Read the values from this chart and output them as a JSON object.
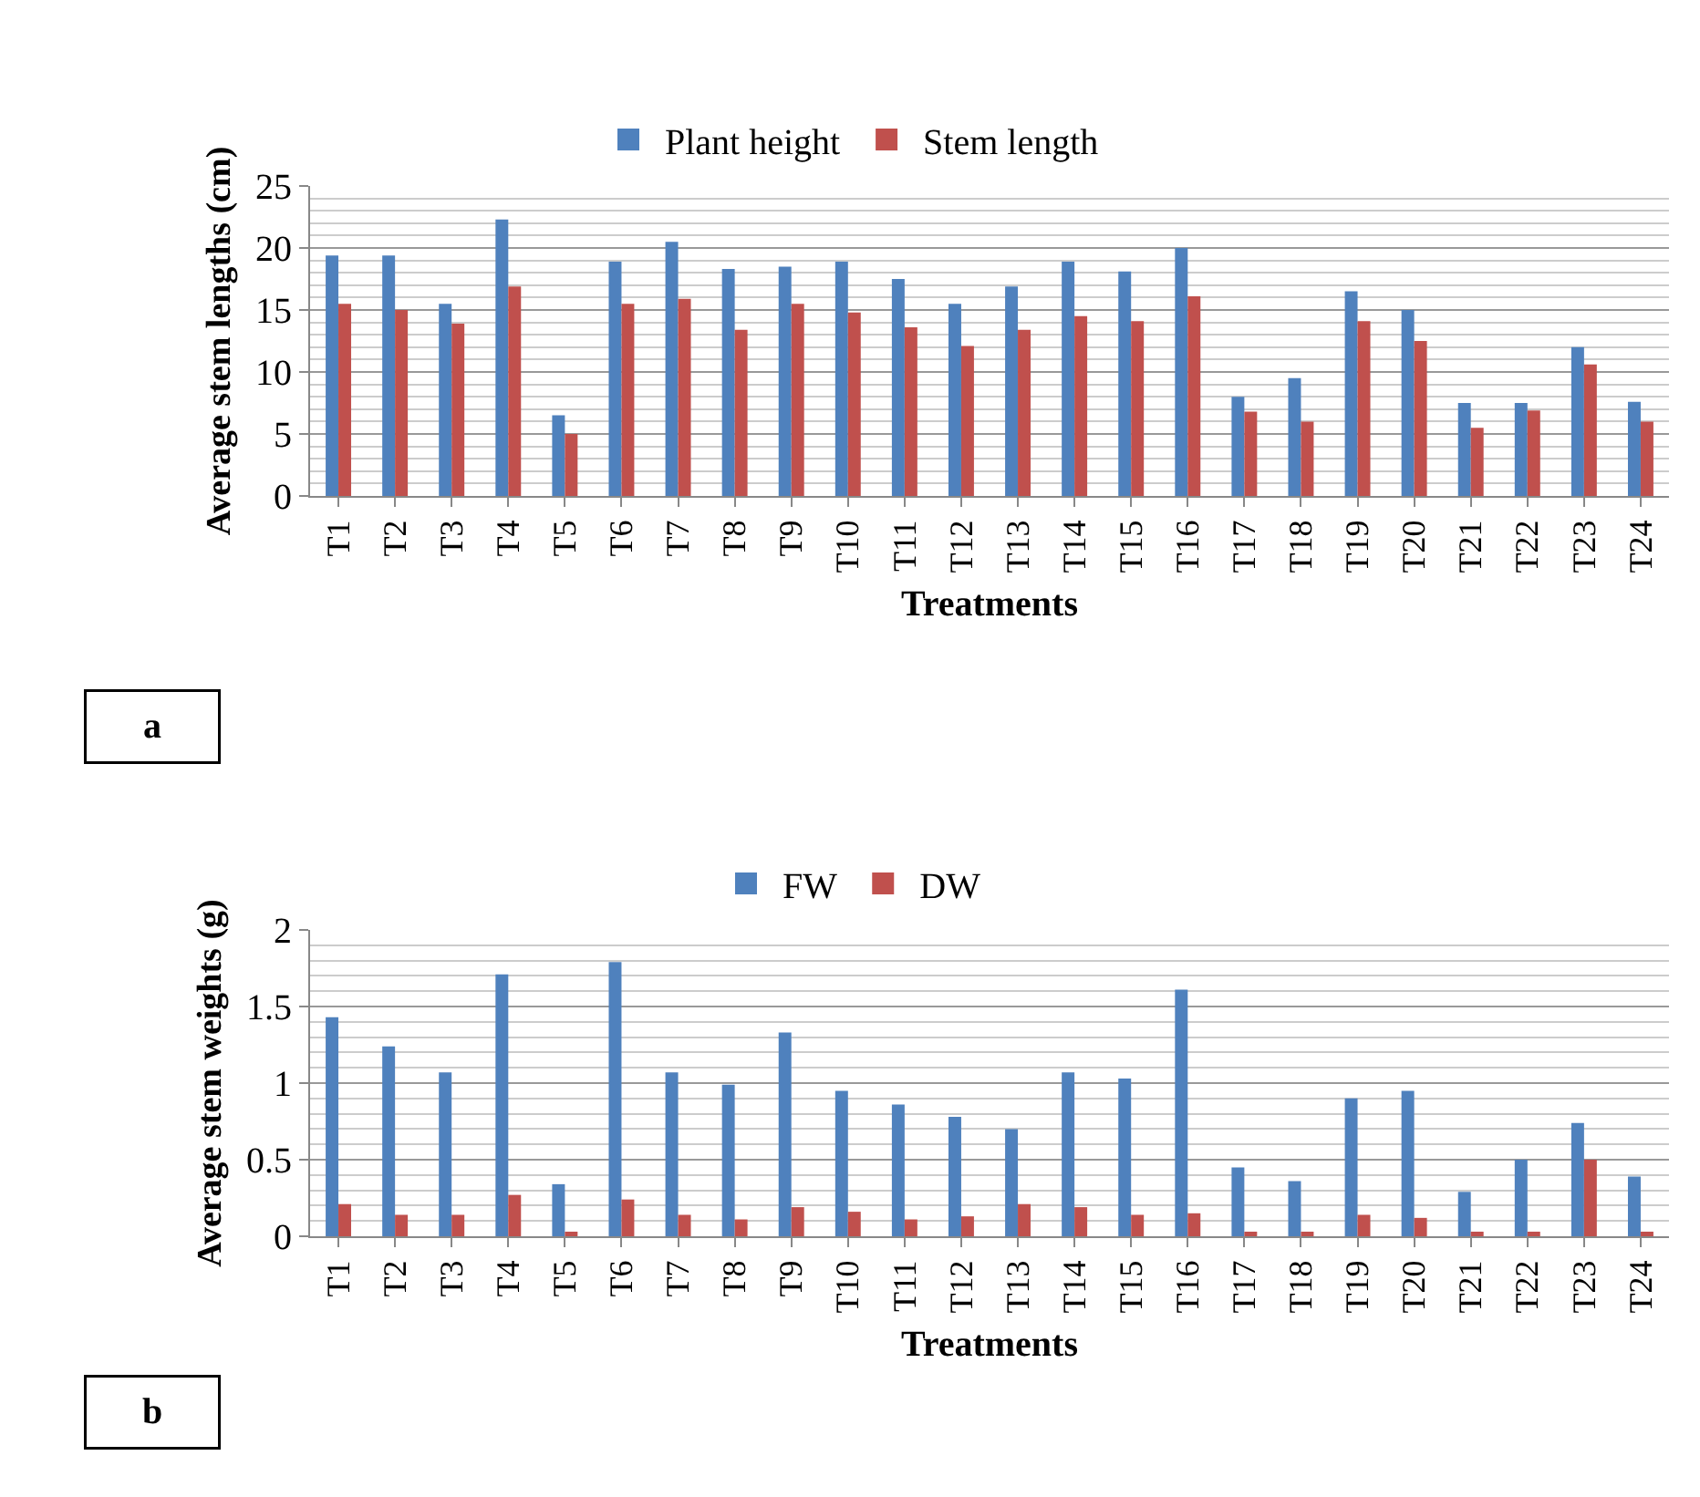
{
  "chart_data": [
    {
      "type": "bar",
      "xlabel": "Treatments",
      "ylabel": "Average stem lengths (cm)",
      "legend": "top",
      "grid": "y",
      "categories": [
        "T1",
        "T2",
        "T3",
        "T4",
        "T5",
        "T6",
        "T7",
        "T8",
        "T9",
        "T10",
        "T11",
        "T12",
        "T13",
        "T14",
        "T15",
        "T16",
        "T17",
        "T18",
        "T19",
        "T20",
        "T21",
        "T22",
        "T23",
        "T24"
      ],
      "series": [
        {
          "name": "Plant height",
          "color": "#4f81bd",
          "values": [
            19.4,
            19.4,
            15.5,
            22.3,
            6.5,
            18.9,
            20.5,
            18.3,
            18.5,
            18.9,
            17.5,
            15.5,
            16.9,
            18.9,
            18.1,
            20.0,
            8.0,
            9.5,
            16.5,
            15.0,
            7.5,
            7.5,
            12.0,
            7.6
          ]
        },
        {
          "name": "Stem length",
          "color": "#c0504d",
          "values": [
            15.5,
            15.0,
            13.9,
            16.9,
            5.0,
            15.5,
            15.9,
            13.4,
            15.5,
            14.8,
            13.6,
            12.1,
            13.4,
            14.5,
            14.1,
            16.1,
            6.8,
            6.0,
            14.1,
            12.5,
            5.5,
            6.9,
            10.6,
            6.0
          ]
        }
      ],
      "ylim": [
        0,
        25
      ],
      "yticks": [
        0,
        5,
        10,
        15,
        20,
        25
      ],
      "annotations": [
        "a"
      ]
    },
    {
      "type": "bar",
      "xlabel": "Treatments",
      "ylabel": "Average stem weights (g)",
      "legend": "top",
      "grid": "y",
      "categories": [
        "T1",
        "T2",
        "T3",
        "T4",
        "T5",
        "T6",
        "T7",
        "T8",
        "T9",
        "T10",
        "T11",
        "T12",
        "T13",
        "T14",
        "T15",
        "T16",
        "T17",
        "T18",
        "T19",
        "T20",
        "T21",
        "T22",
        "T23",
        "T24"
      ],
      "series": [
        {
          "name": "FW",
          "color": "#4f81bd",
          "values": [
            1.43,
            1.24,
            1.07,
            1.71,
            0.34,
            1.79,
            1.07,
            0.99,
            1.33,
            0.95,
            0.86,
            0.78,
            0.7,
            1.07,
            1.03,
            1.61,
            0.45,
            0.36,
            0.9,
            0.95,
            0.29,
            0.5,
            0.74,
            0.39
          ]
        },
        {
          "name": "DW",
          "color": "#c0504d",
          "values": [
            0.21,
            0.14,
            0.14,
            0.27,
            0.03,
            0.24,
            0.14,
            0.11,
            0.19,
            0.16,
            0.11,
            0.13,
            0.21,
            0.19,
            0.14,
            0.15,
            0.03,
            0.03,
            0.14,
            0.12,
            0.03,
            0.03,
            0.5,
            0.03
          ]
        }
      ],
      "ylim": [
        0,
        2
      ],
      "yticks": [
        0,
        0.5,
        1,
        1.5,
        2
      ],
      "annotations": [
        "b"
      ]
    }
  ]
}
